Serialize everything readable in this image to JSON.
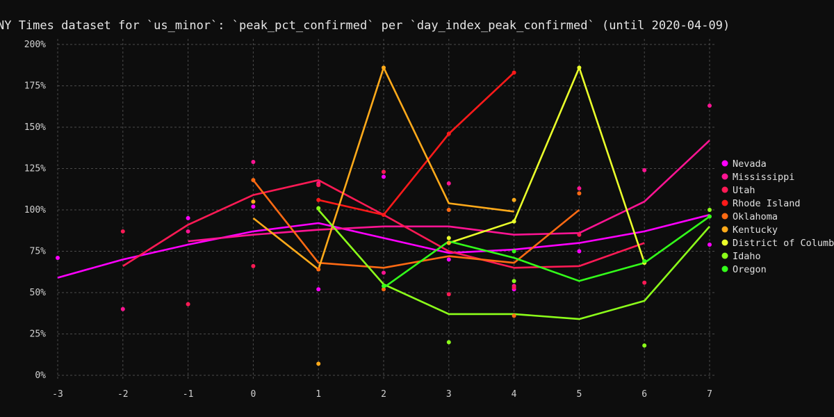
{
  "chart_data": {
    "type": "line",
    "title": "NY Times dataset for `us_minor`: `peak_pct_confirmed` per `day_index_peak_confirmed` (until 2020-04-09)",
    "xlabel": "",
    "ylabel": "",
    "xlim": [
      -3,
      7
    ],
    "ylim": [
      0,
      200
    ],
    "x_ticks": [
      -3,
      -2,
      -1,
      0,
      1,
      2,
      3,
      4,
      5,
      6,
      7
    ],
    "y_ticks": [
      0,
      25,
      50,
      75,
      100,
      125,
      150,
      175,
      200
    ],
    "y_tick_labels": [
      "0%",
      "25%",
      "50%",
      "75%",
      "100%",
      "125%",
      "150%",
      "175%",
      "200%"
    ],
    "grid": true,
    "legend_position": "right",
    "series": [
      {
        "name": "Nevada",
        "color": "#ff00ff",
        "line": [
          [
            -3,
            59
          ],
          [
            -2,
            70
          ],
          [
            -1,
            79
          ],
          [
            0,
            87
          ],
          [
            1,
            92
          ],
          [
            2,
            83
          ],
          [
            3,
            74
          ],
          [
            4,
            76
          ],
          [
            5,
            80
          ],
          [
            6,
            87
          ],
          [
            7,
            97
          ]
        ],
        "points": [
          [
            -3,
            71
          ],
          [
            -1,
            95
          ],
          [
            0,
            102
          ],
          [
            1,
            52
          ],
          [
            2,
            120
          ],
          [
            3,
            70
          ],
          [
            4,
            52
          ],
          [
            5,
            75
          ],
          [
            7,
            79
          ]
        ]
      },
      {
        "name": "Mississippi",
        "color": "#ff1493",
        "line": [
          [
            -1,
            81
          ],
          [
            0,
            85
          ],
          [
            1,
            88
          ],
          [
            2,
            90
          ],
          [
            3,
            90
          ],
          [
            4,
            85
          ],
          [
            5,
            86
          ],
          [
            6,
            105
          ],
          [
            7,
            142
          ]
        ],
        "points": [
          [
            -2,
            40
          ],
          [
            -1,
            87
          ],
          [
            0,
            129
          ],
          [
            1,
            116
          ],
          [
            2,
            62
          ],
          [
            3,
            116
          ],
          [
            4,
            54
          ],
          [
            5,
            113
          ],
          [
            6,
            124
          ],
          [
            7,
            163
          ]
        ]
      },
      {
        "name": "Utah",
        "color": "#ff1a55",
        "line": [
          [
            -2,
            66
          ],
          [
            -1,
            91
          ],
          [
            0,
            109
          ],
          [
            1,
            118
          ],
          [
            2,
            97
          ],
          [
            3,
            75
          ],
          [
            4,
            65
          ],
          [
            5,
            66
          ],
          [
            6,
            80
          ]
        ],
        "points": [
          [
            -2,
            87
          ],
          [
            -1,
            43
          ],
          [
            0,
            66
          ],
          [
            1,
            115
          ],
          [
            2,
            123
          ],
          [
            3,
            49
          ],
          [
            4,
            53
          ],
          [
            5,
            85
          ],
          [
            6,
            56
          ]
        ]
      },
      {
        "name": "Rhode Island",
        "color": "#ff1a1a",
        "line": [
          [
            1,
            106
          ],
          [
            2,
            97
          ],
          [
            3,
            146
          ],
          [
            4,
            183
          ]
        ],
        "points": [
          [
            1,
            106
          ],
          [
            2,
            97
          ],
          [
            3,
            146
          ],
          [
            4,
            183
          ]
        ]
      },
      {
        "name": "Oklahoma",
        "color": "#ff6a13",
        "line": [
          [
            0,
            118
          ],
          [
            1,
            68
          ],
          [
            2,
            65
          ],
          [
            3,
            72
          ],
          [
            4,
            68
          ],
          [
            5,
            100
          ]
        ],
        "points": [
          [
            0,
            118
          ],
          [
            1,
            64
          ],
          [
            2,
            52
          ],
          [
            3,
            100
          ],
          [
            4,
            36
          ],
          [
            5,
            110
          ]
        ]
      },
      {
        "name": "Kentucky",
        "color": "#ffaa1a",
        "line": [
          [
            0,
            95
          ],
          [
            1,
            64
          ],
          [
            2,
            186
          ],
          [
            3,
            104
          ],
          [
            4,
            99
          ]
        ],
        "points": [
          [
            0,
            105
          ],
          [
            1,
            7
          ],
          [
            2,
            186
          ],
          [
            3,
            80
          ],
          [
            4,
            106
          ]
        ]
      },
      {
        "name": "District of Columbia",
        "color": "#eaff2a",
        "line": [
          [
            3,
            80
          ],
          [
            4,
            93
          ],
          [
            5,
            186
          ],
          [
            6,
            68
          ]
        ],
        "points": [
          [
            3,
            83
          ],
          [
            4,
            93
          ],
          [
            5,
            186
          ],
          [
            6,
            68
          ]
        ]
      },
      {
        "name": "Idaho",
        "color": "#8cff1a",
        "line": [
          [
            1,
            100
          ],
          [
            2,
            55
          ],
          [
            3,
            37
          ],
          [
            4,
            37
          ],
          [
            5,
            34
          ],
          [
            6,
            45
          ],
          [
            7,
            90
          ]
        ],
        "points": [
          [
            1,
            101
          ],
          [
            3,
            20
          ],
          [
            4,
            57
          ],
          [
            6,
            18
          ],
          [
            7,
            100
          ]
        ]
      },
      {
        "name": "Oregon",
        "color": "#33ff1a",
        "line": [
          [
            2,
            53
          ],
          [
            3,
            81
          ],
          [
            4,
            71
          ],
          [
            5,
            57
          ],
          [
            6,
            68
          ],
          [
            7,
            96
          ]
        ],
        "points": [
          [
            2,
            54
          ],
          [
            4,
            75
          ],
          [
            6,
            69
          ],
          [
            7,
            96
          ]
        ]
      }
    ]
  }
}
